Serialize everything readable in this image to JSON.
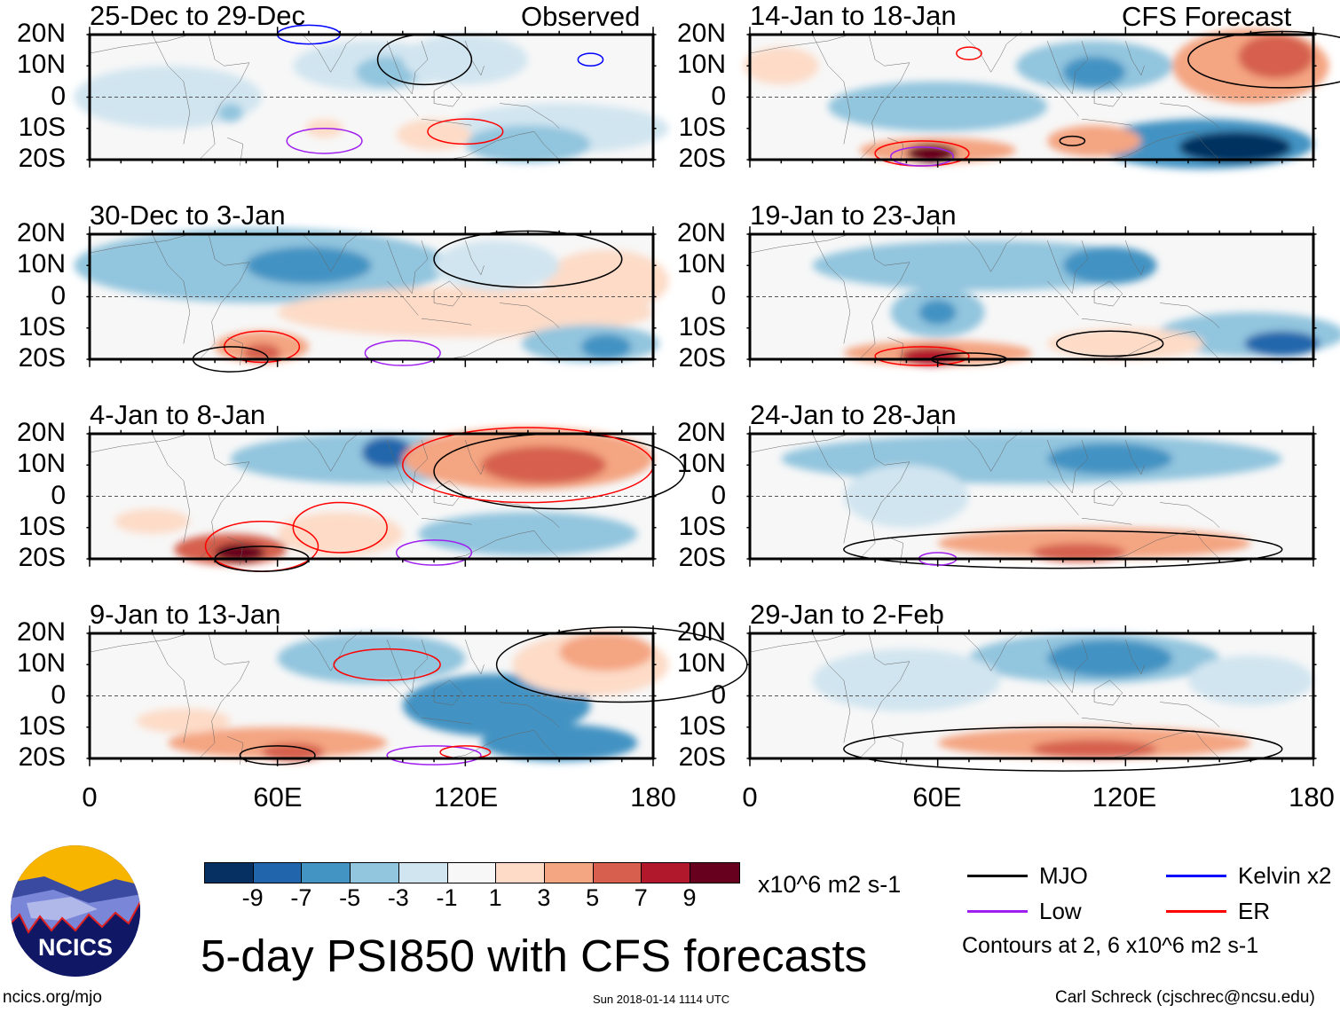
{
  "chart_data": {
    "type": "heatmap",
    "title": "5-day PSI850 with CFS forecasts",
    "variable_units": "x10^6 m2 s-1",
    "x_ticks": [
      "0",
      "60E",
      "120E",
      "180"
    ],
    "xlim": [
      0,
      180
    ],
    "y_ticks": [
      "20N",
      "10N",
      "0",
      "10S",
      "20S"
    ],
    "ylim": [
      -20,
      20
    ],
    "column_headers": [
      "Observed",
      "CFS Forecast"
    ],
    "panels": [
      {
        "title": "25-Dec to 29-Dec",
        "column": "Observed"
      },
      {
        "title": "30-Dec to 3-Jan",
        "column": "Observed"
      },
      {
        "title": "4-Jan to 8-Jan",
        "column": "Observed"
      },
      {
        "title": "9-Jan to 13-Jan",
        "column": "Observed"
      },
      {
        "title": "14-Jan to 18-Jan",
        "column": "CFS Forecast"
      },
      {
        "title": "19-Jan to 23-Jan",
        "column": "CFS Forecast"
      },
      {
        "title": "24-Jan to 28-Jan",
        "column": "CFS Forecast"
      },
      {
        "title": "29-Jan to 2-Feb",
        "column": "CFS Forecast"
      }
    ],
    "colorbar": {
      "labels": [
        "-9",
        "-7",
        "-5",
        "-3",
        "-1",
        "1",
        "3",
        "5",
        "7",
        "9"
      ],
      "colors": [
        "#053061",
        "#2166ac",
        "#4393c3",
        "#92c5de",
        "#d1e5f0",
        "#f7f7f7",
        "#fddbc7",
        "#f4a582",
        "#d6604d",
        "#b2182b",
        "#67001f"
      ],
      "units": "x10^6 m2 s-1"
    },
    "legend": [
      {
        "label": "MJO",
        "color": "#000000"
      },
      {
        "label": "Kelvin x2",
        "color": "#0000ff"
      },
      {
        "label": "Low",
        "color": "#a020f0"
      },
      {
        "label": "ER",
        "color": "#ff0000"
      }
    ],
    "contour_note": "Contours at 2, 6 x10^6 m2 s-1"
  },
  "logo": {
    "text": "NCICS"
  },
  "footer": {
    "url": "ncics.org/mjo",
    "timestamp": "Sun 2018-01-14 1114 UTC",
    "author": "Carl Schreck (cjschrec@ncsu.edu)"
  }
}
